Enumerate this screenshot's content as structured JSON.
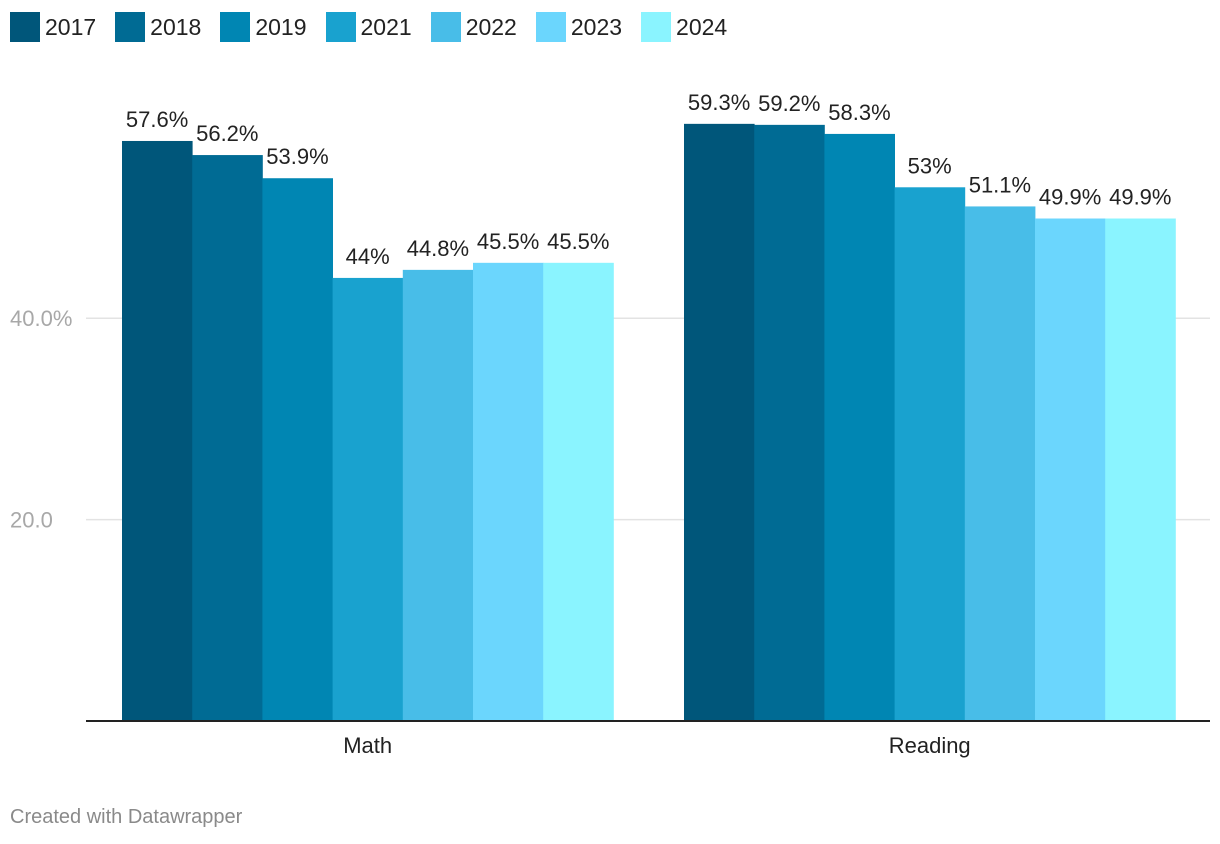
{
  "chart_data": {
    "type": "bar",
    "categories": [
      "Math",
      "Reading"
    ],
    "series": [
      {
        "name": "2017",
        "color": "#00567a",
        "values": [
          57.6,
          59.3
        ],
        "labels": [
          "57.6%",
          "59.3%"
        ]
      },
      {
        "name": "2018",
        "color": "#006b94",
        "values": [
          56.2,
          59.2
        ],
        "labels": [
          "56.2%",
          "59.2%"
        ]
      },
      {
        "name": "2019",
        "color": "#0086b3",
        "values": [
          53.9,
          58.3
        ],
        "labels": [
          "53.9%",
          "58.3%"
        ]
      },
      {
        "name": "2021",
        "color": "#19a2cf",
        "values": [
          44.0,
          53.0
        ],
        "labels": [
          "44%",
          "53%"
        ]
      },
      {
        "name": "2022",
        "color": "#48bde8",
        "values": [
          44.8,
          51.1
        ],
        "labels": [
          "44.8%",
          "51.1%"
        ]
      },
      {
        "name": "2023",
        "color": "#6bd6fd",
        "values": [
          45.5,
          49.9
        ],
        "labels": [
          "45.5%",
          "49.9%"
        ]
      },
      {
        "name": "2024",
        "color": "#8af4ff",
        "values": [
          45.5,
          49.9
        ],
        "labels": [
          "45.5%",
          "49.9%"
        ]
      }
    ],
    "yticks": [
      {
        "value": 20,
        "label": "20.0"
      },
      {
        "value": 40,
        "label": "40.0%"
      }
    ],
    "ylim": [
      0,
      60
    ],
    "grid": true,
    "legend_position": "top-left",
    "xlabel": "",
    "ylabel": ""
  },
  "footer": {
    "credit": "Created with Datawrapper"
  }
}
